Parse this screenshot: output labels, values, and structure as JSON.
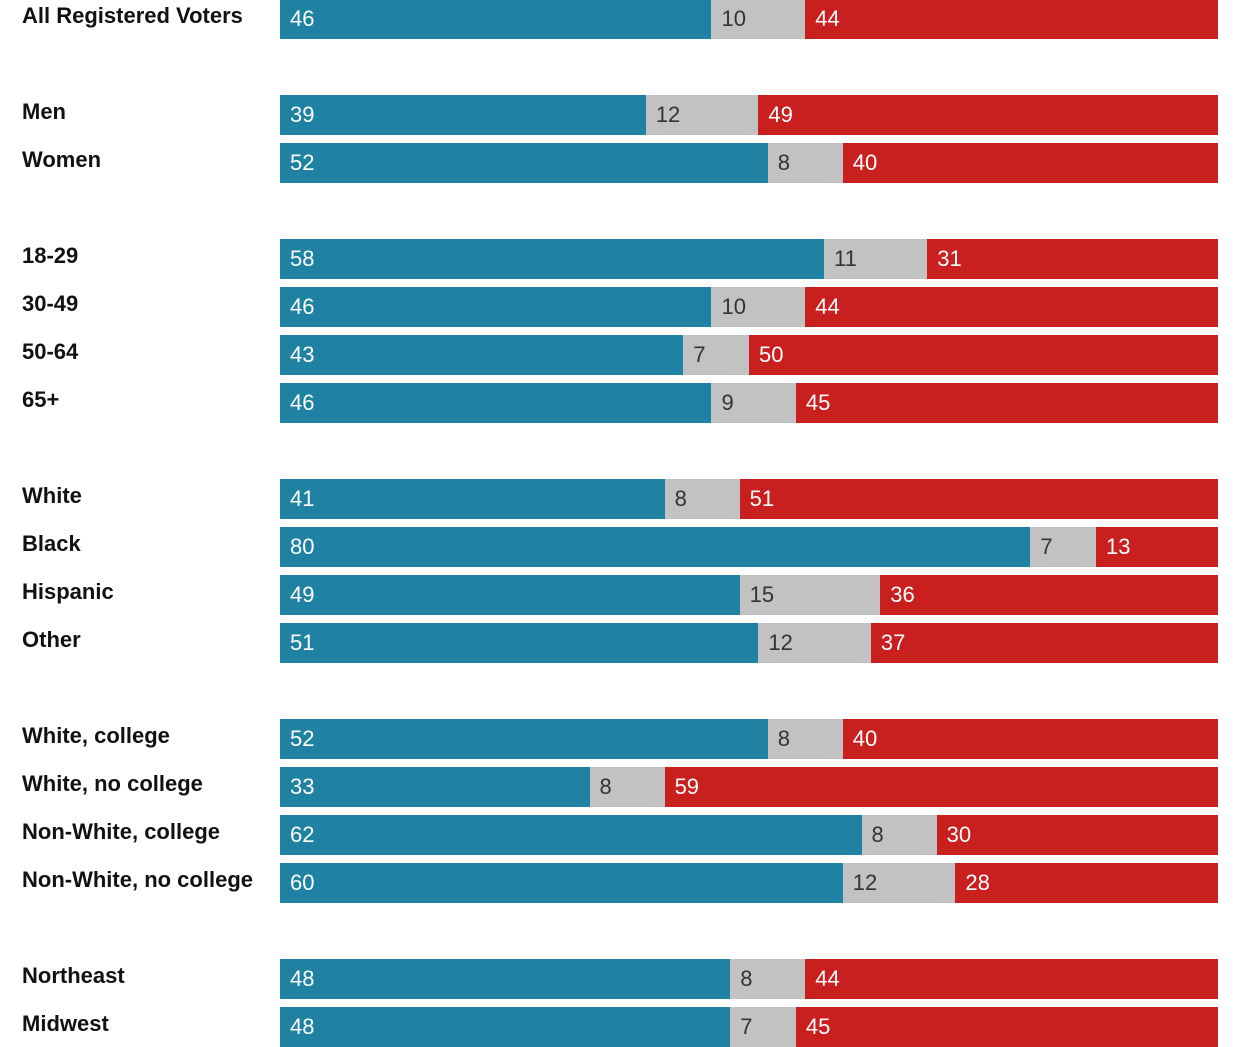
{
  "chart_data": {
    "type": "bar",
    "orientation": "horizontal",
    "stacked": true,
    "xlim": [
      0,
      100
    ],
    "colors": {
      "blue": "#1f82a3",
      "grey": "#c2c2c2",
      "red": "#c91f1f"
    },
    "groups": [
      {
        "rows": [
          {
            "label": "All Registered Voters",
            "values": [
              46,
              10,
              44
            ]
          }
        ]
      },
      {
        "rows": [
          {
            "label": "Men",
            "values": [
              39,
              12,
              49
            ]
          },
          {
            "label": "Women",
            "values": [
              52,
              8,
              40
            ]
          }
        ]
      },
      {
        "rows": [
          {
            "label": "18-29",
            "values": [
              58,
              11,
              31
            ]
          },
          {
            "label": "30-49",
            "values": [
              46,
              10,
              44
            ]
          },
          {
            "label": "50-64",
            "values": [
              43,
              7,
              50
            ]
          },
          {
            "label": "65+",
            "values": [
              46,
              9,
              45
            ]
          }
        ]
      },
      {
        "rows": [
          {
            "label": "White",
            "values": [
              41,
              8,
              51
            ]
          },
          {
            "label": "Black",
            "values": [
              80,
              7,
              13
            ]
          },
          {
            "label": "Hispanic",
            "values": [
              49,
              15,
              36
            ]
          },
          {
            "label": "Other",
            "values": [
              51,
              12,
              37
            ]
          }
        ]
      },
      {
        "rows": [
          {
            "label": "White, college",
            "values": [
              52,
              8,
              40
            ]
          },
          {
            "label": "White, no college",
            "values": [
              33,
              8,
              59
            ]
          },
          {
            "label": "Non-White, college",
            "values": [
              62,
              8,
              30
            ]
          },
          {
            "label": "Non-White, no college",
            "values": [
              60,
              12,
              28
            ]
          }
        ]
      },
      {
        "rows": [
          {
            "label": "Northeast",
            "values": [
              48,
              8,
              44
            ]
          },
          {
            "label": "Midwest",
            "values": [
              48,
              7,
              45
            ]
          }
        ]
      }
    ]
  }
}
